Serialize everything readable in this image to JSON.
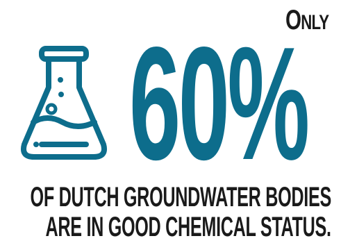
{
  "headline": {
    "prefix_first": "O",
    "prefix_rest": "NLY",
    "value": "60%"
  },
  "caption": {
    "line1": "OF DUTCH GROUNDWATER BODIES",
    "line2": "ARE IN GOOD CHEMICAL STATUS."
  },
  "icon": "flask-icon",
  "colors": {
    "accent": "#0d6d8c",
    "text": "#1a1a1a",
    "background": "#ffffff"
  }
}
